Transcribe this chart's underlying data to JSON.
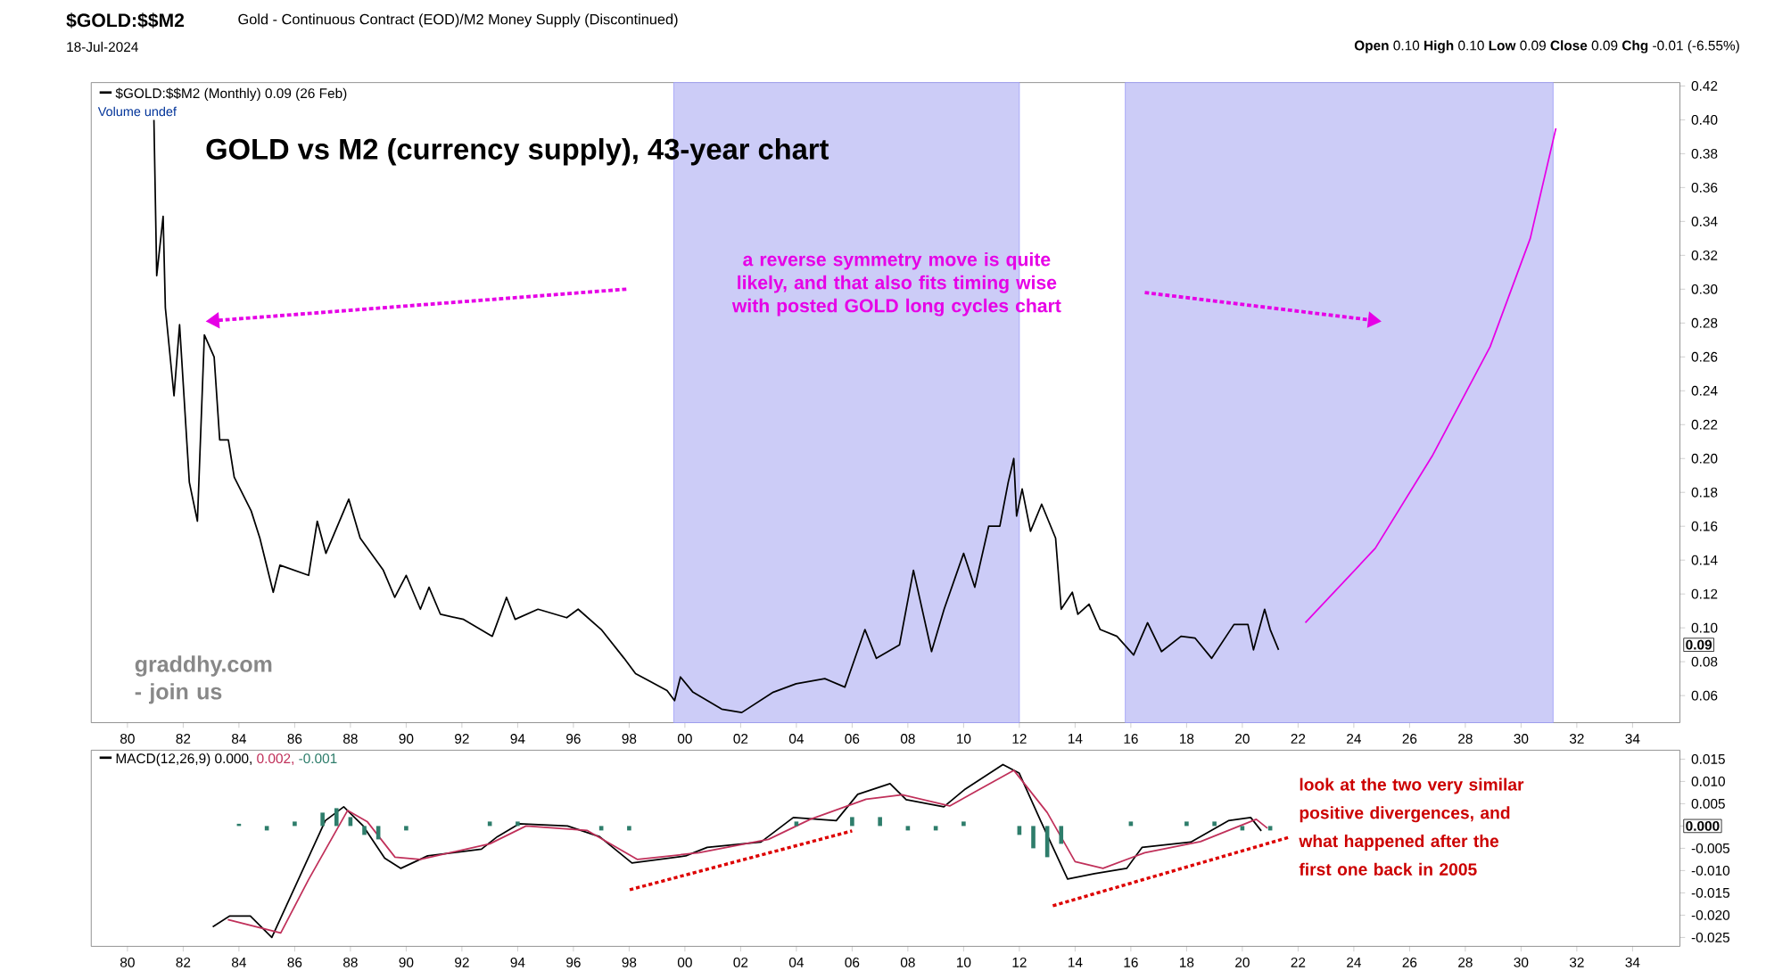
{
  "chart_data": [
    {
      "type": "line",
      "title": "GOLD vs M2 (currency supply), 43-year chart",
      "legend": "top left",
      "xlim": [
        1978.7,
        2035.7
      ],
      "ylim": [
        0.044,
        0.422
      ],
      "xticks": [
        {
          "value": 1980,
          "label": "80"
        },
        {
          "value": 1982,
          "label": "82"
        },
        {
          "value": 1984,
          "label": "84"
        },
        {
          "value": 1986,
          "label": "86"
        },
        {
          "value": 1988,
          "label": "88"
        },
        {
          "value": 1990,
          "label": "90"
        },
        {
          "value": 1992,
          "label": "92"
        },
        {
          "value": 1994,
          "label": "94"
        },
        {
          "value": 1996,
          "label": "96"
        },
        {
          "value": 1998,
          "label": "98"
        },
        {
          "value": 2000,
          "label": "00"
        },
        {
          "value": 2002,
          "label": "02"
        },
        {
          "value": 2004,
          "label": "04"
        },
        {
          "value": 2006,
          "label": "06"
        },
        {
          "value": 2008,
          "label": "08"
        },
        {
          "value": 2010,
          "label": "10"
        },
        {
          "value": 2012,
          "label": "12"
        },
        {
          "value": 2014,
          "label": "14"
        },
        {
          "value": 2016,
          "label": "16"
        },
        {
          "value": 2018,
          "label": "18"
        },
        {
          "value": 2020,
          "label": "20"
        },
        {
          "value": 2022,
          "label": "22"
        },
        {
          "value": 2024,
          "label": "24"
        },
        {
          "value": 2026,
          "label": "26"
        },
        {
          "value": 2028,
          "label": "28"
        },
        {
          "value": 2030,
          "label": "30"
        },
        {
          "value": 2032,
          "label": "32"
        },
        {
          "value": 2034,
          "label": "34"
        }
      ],
      "yticks": [
        0.06,
        0.08,
        {
          "value": 0.1,
          "label": "0.10"
        },
        0.12,
        0.14,
        0.16,
        0.18,
        {
          "value": 0.2,
          "label": "0.20"
        },
        0.22,
        0.24,
        0.26,
        0.28,
        {
          "value": 0.3,
          "label": "0.30"
        },
        0.32,
        0.34,
        0.36,
        0.38,
        {
          "value": 0.4,
          "label": "0.40"
        },
        0.42
      ],
      "bands": [
        {
          "axis": "x",
          "from": 1999.6,
          "to": 2012.0,
          "color": "#ccccf7"
        },
        {
          "axis": "x",
          "from": 2015.8,
          "to": 2031.15,
          "color": "#ccccf7"
        }
      ],
      "series": [
        {
          "name": "$GOLD:$$M2 (Monthly) 0.09 (26 Feb)",
          "color": "#000000",
          "x": [
            1980.95,
            1981.05,
            1981.28,
            1981.36,
            1981.67,
            1981.87,
            1982.22,
            1982.51,
            1982.76,
            1983.11,
            1983.31,
            1983.62,
            1983.83,
            1984.44,
            1984.75,
            1985.23,
            1985.47,
            1986.5,
            1986.81,
            1987.12,
            1987.94,
            1988.35,
            1989.18,
            1989.59,
            1990.0,
            1990.51,
            1990.82,
            1991.23,
            1992.06,
            1993.09,
            1993.6,
            1993.91,
            1994.73,
            1995.76,
            1996.17,
            1997.0,
            1997.82,
            1998.23,
            1999.36,
            1999.63,
            1999.84,
            2000.29,
            2001.32,
            2002.04,
            2003.17,
            2003.99,
            2005.02,
            2005.74,
            2006.46,
            2006.87,
            2007.7,
            2008.2,
            2008.85,
            2009.3,
            2010.0,
            2010.4,
            2010.9,
            2011.3,
            2011.6,
            2011.8,
            2011.9,
            2012.1,
            2012.4,
            2012.8,
            2013.3,
            2013.5,
            2013.9,
            2014.1,
            2014.5,
            2014.9,
            2015.5,
            2016.1,
            2016.6,
            2017.1,
            2017.8,
            2018.3,
            2018.9,
            2019.7,
            2020.2,
            2020.4,
            2020.8,
            2021.0,
            2021.3
          ],
          "values": [
            0.4,
            0.308,
            0.343,
            0.289,
            0.237,
            0.279,
            0.186,
            0.163,
            0.273,
            0.26,
            0.211,
            0.211,
            0.189,
            0.169,
            0.153,
            0.121,
            0.137,
            0.131,
            0.163,
            0.144,
            0.176,
            0.153,
            0.134,
            0.118,
            0.131,
            0.111,
            0.124,
            0.108,
            0.105,
            0.095,
            0.118,
            0.105,
            0.111,
            0.106,
            0.111,
            0.099,
            0.082,
            0.073,
            0.063,
            0.057,
            0.071,
            0.062,
            0.052,
            0.05,
            0.062,
            0.067,
            0.07,
            0.065,
            0.099,
            0.082,
            0.09,
            0.134,
            0.086,
            0.111,
            0.144,
            0.124,
            0.16,
            0.16,
            0.186,
            0.2,
            0.166,
            0.182,
            0.157,
            0.173,
            0.153,
            0.111,
            0.121,
            0.108,
            0.114,
            0.099,
            0.095,
            0.084,
            0.103,
            0.086,
            0.095,
            0.094,
            0.082,
            0.102,
            0.102,
            0.087,
            0.111,
            0.099,
            0.087
          ]
        },
        {
          "color": "#e600e6",
          "x": [
            2022.26,
            2024.77,
            2026.83,
            2028.89,
            2030.33,
            2031.25
          ],
          "values": [
            0.103,
            0.147,
            0.202,
            0.266,
            0.33,
            0.395
          ]
        }
      ],
      "annotations": [
        "$GOLD:$$M2",
        "Gold - Continuous Contract (EOD)/M2 Money Supply (Discontinued)",
        "18-Jul-2024",
        "**Open** 0.10 **High** 0.10 **Low** 0.09 **Close** 0.09 **Chg** -0.01 (-6.55%)",
        "Volume undef",
        "a reverse symmetry move is quite likely, and that also fits timing wise with posted GOLD long cycles chart",
        "graddhy.com - join us",
        {
          "text": "0.09",
          "y": 0.09
        }
      ]
    },
    {
      "type": "line",
      "legend": "top left",
      "xlim": [
        1978.7,
        2035.7
      ],
      "ylim": [
        -0.027,
        0.017
      ],
      "xticks": [
        {
          "value": 1980,
          "label": "80"
        },
        {
          "value": 1982,
          "label": "82"
        },
        {
          "value": 1984,
          "label": "84"
        },
        {
          "value": 1986,
          "label": "86"
        },
        {
          "value": 1988,
          "label": "88"
        },
        {
          "value": 1990,
          "label": "90"
        },
        {
          "value": 1992,
          "label": "92"
        },
        {
          "value": 1994,
          "label": "94"
        },
        {
          "value": 1996,
          "label": "96"
        },
        {
          "value": 1998,
          "label": "98"
        },
        {
          "value": 2000,
          "label": "00"
        },
        {
          "value": 2002,
          "label": "02"
        },
        {
          "value": 2004,
          "label": "04"
        },
        {
          "value": 2006,
          "label": "06"
        },
        {
          "value": 2008,
          "label": "08"
        },
        {
          "value": 2010,
          "label": "10"
        },
        {
          "value": 2012,
          "label": "12"
        },
        {
          "value": 2014,
          "label": "14"
        },
        {
          "value": 2016,
          "label": "16"
        },
        {
          "value": 2018,
          "label": "18"
        },
        {
          "value": 2020,
          "label": "20"
        },
        {
          "value": 2022,
          "label": "22"
        },
        {
          "value": 2024,
          "label": "24"
        },
        {
          "value": 2026,
          "label": "26"
        },
        {
          "value": 2028,
          "label": "28"
        },
        {
          "value": 2030,
          "label": "30"
        },
        {
          "value": 2032,
          "label": "32"
        },
        {
          "value": 2034,
          "label": "34"
        }
      ],
      "yticks": [
        0.015,
        {
          "value": 0.01,
          "label": "0.010"
        },
        0.005,
        {
          "value": 0,
          "label": null
        },
        -0.005,
        {
          "value": -0.01,
          "label": "-0.010"
        },
        -0.015,
        {
          "value": -0.02,
          "label": "-0.020"
        },
        -0.025
      ],
      "series": [
        {
          "name": "MACD(12,26,9) 0.000,",
          "color": "#000000",
          "x": [
            1983.06,
            1983.66,
            1984.41,
            1985.18,
            1986.14,
            1987.1,
            1987.76,
            1988.46,
            1989.23,
            1989.81,
            1990.77,
            1992.7,
            1993.27,
            1994.05,
            1995.79,
            1996.94,
            1998.1,
            2000.03,
            2000.8,
            2002.73,
            2003.89,
            2005.43,
            2006.2,
            2007.36,
            2007.94,
            2009.29,
            2010.06,
            2011.41,
            2011.99,
            2012.76,
            2013.73,
            2014.69,
            2015.85,
            2016.4,
            2018.15,
            2019.5,
            2020.3,
            2020.68
          ],
          "values": [
            -0.0226,
            -0.0202,
            -0.0202,
            -0.025,
            -0.0119,
            0.0012,
            0.0043,
            0.0,
            -0.0072,
            -0.0095,
            -0.0067,
            -0.0052,
            -0.0024,
            0.0005,
            0.0,
            -0.0024,
            -0.0083,
            -0.0067,
            -0.0048,
            -0.0036,
            0.0019,
            0.0012,
            0.0071,
            0.0095,
            0.0059,
            0.0043,
            0.0083,
            0.0138,
            0.0119,
            0.0012,
            -0.0119,
            -0.0107,
            -0.0095,
            -0.0048,
            -0.0036,
            0.0012,
            0.0019,
            -0.0011
          ]
        },
        {
          "name": "0.002,",
          "color": "#c0305a",
          "x": [
            1983.6,
            1985.5,
            1986.5,
            1987.9,
            1988.6,
            1989.6,
            1990.5,
            1993.0,
            1994.3,
            1996.5,
            1998.3,
            2000.5,
            2003.0,
            2004.5,
            2006.5,
            2007.8,
            2009.5,
            2010.5,
            2011.8,
            2013.0,
            2014.0,
            2015.0,
            2016.5,
            2018.5,
            2020.5,
            2020.9
          ],
          "values": [
            -0.021,
            -0.024,
            -0.012,
            0.0035,
            0.001,
            -0.007,
            -0.0075,
            -0.004,
            0.0,
            -0.001,
            -0.0075,
            -0.006,
            -0.003,
            0.0015,
            0.006,
            0.007,
            0.0045,
            0.008,
            0.0125,
            0.003,
            -0.008,
            -0.0095,
            -0.006,
            -0.0035,
            0.0015,
            -0.0005
          ]
        },
        {
          "name": "-0.001",
          "type": "bar",
          "color": "#2e7d6b",
          "x": [
            1984,
            1985,
            1986,
            1987,
            1987.5,
            1988,
            1988.5,
            1989,
            1990,
            1993,
            1994,
            1997,
            1998,
            2004,
            2006,
            2007,
            2008,
            2009,
            2010,
            2012,
            2012.5,
            2013,
            2013.5,
            2016,
            2018,
            2019,
            2020,
            2021
          ],
          "values": [
            0.0005,
            -0.001,
            0.001,
            0.003,
            0.004,
            0.002,
            -0.002,
            -0.003,
            -0.001,
            0.001,
            0.001,
            -0.001,
            -0.001,
            0.001,
            0.002,
            0.002,
            -0.001,
            -0.001,
            0.001,
            -0.002,
            -0.005,
            -0.007,
            -0.004,
            0.001,
            0.001,
            0.001,
            -0.001,
            -0.001
          ]
        },
        {
          "color": "#dd0000",
          "line_style": "dotted",
          "x": [
            1998.02,
            2006.0
          ],
          "values": [
            -0.0143,
            -0.0011
          ]
        },
        {
          "color": "#dd0000",
          "line_style": "dotted",
          "x": [
            2013.2,
            2021.64
          ],
          "values": [
            -0.0179,
            -0.0026
          ]
        }
      ],
      "annotations": [
        "look at the two very similar positive divergences, and what happened after the first one back in 2005",
        {
          "text": "0.000",
          "y": 0
        }
      ]
    }
  ]
}
